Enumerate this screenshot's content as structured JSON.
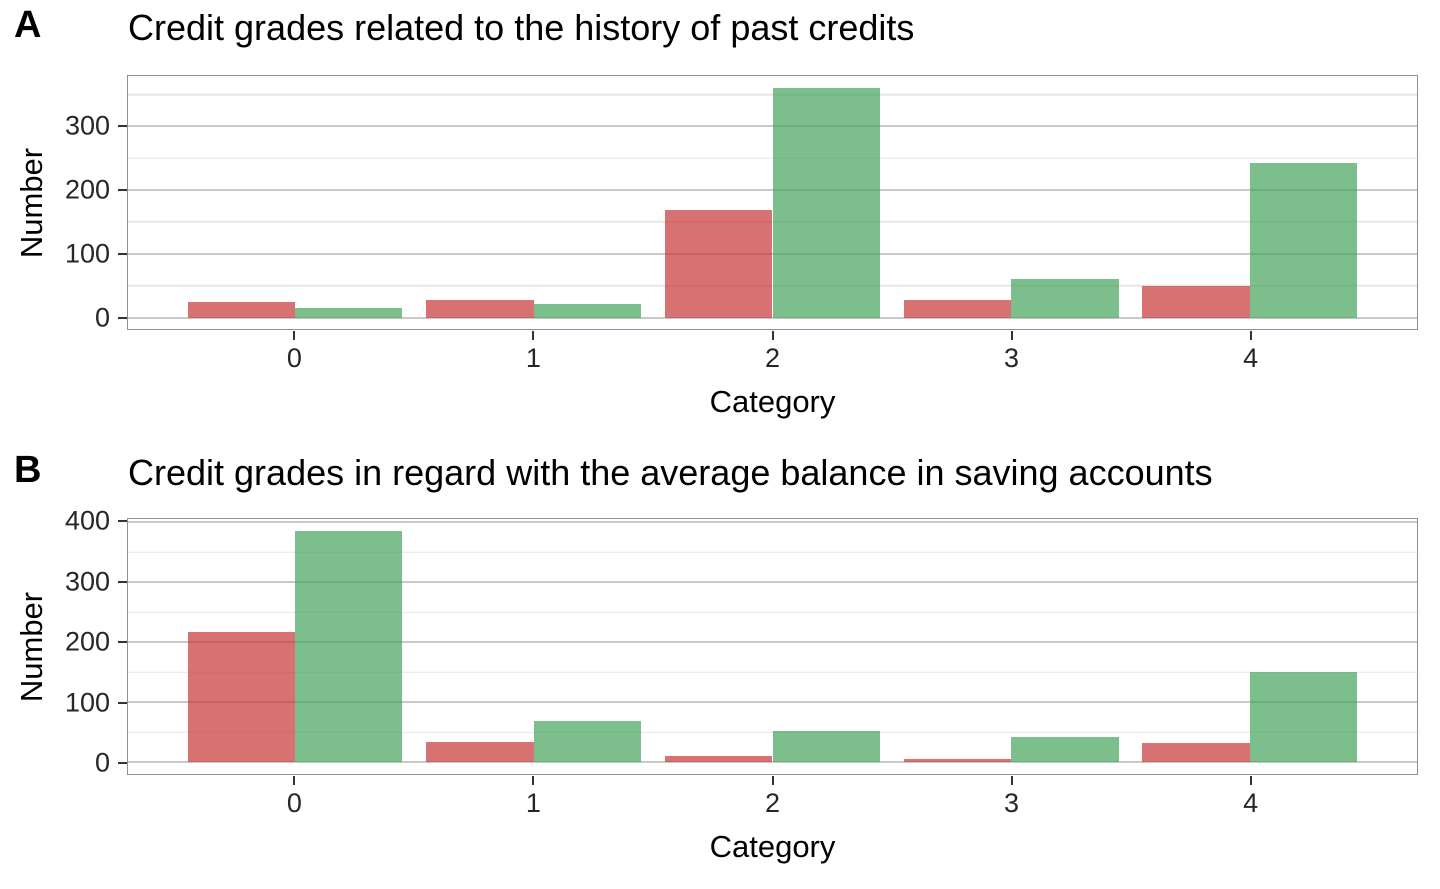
{
  "figure": {
    "panels": [
      {
        "label": "A",
        "title": "Credit grades related to the history of past credits",
        "xlabel": "Category",
        "ylabel": "Number"
      },
      {
        "label": "B",
        "title": "Credit grades in regard with the average balance in saving accounts",
        "xlabel": "Category",
        "ylabel": "Number"
      }
    ]
  },
  "chart_data": [
    {
      "type": "bar",
      "panel": "A",
      "title": "Credit grades related to the history of past credits",
      "xlabel": "Category",
      "ylabel": "Number",
      "categories": [
        "0",
        "1",
        "2",
        "3",
        "4"
      ],
      "series": [
        {
          "name": "red",
          "color": "#D87171",
          "fill": "rgba(201,59,59,0.72)",
          "values": [
            25,
            28,
            169,
            28,
            50
          ]
        },
        {
          "name": "green",
          "color": "#7CBE8C",
          "fill": "rgba(68,162,91,0.70)",
          "values": [
            15,
            21,
            361,
            60,
            243
          ]
        }
      ],
      "yticks": [
        0,
        100,
        200,
        300
      ],
      "yticks_minor": [
        50,
        150,
        250,
        350
      ],
      "ylim": [
        -18.05,
        379.05
      ],
      "bar_layout": {
        "dodge": true,
        "bar_width_units": 0.45,
        "x_expand_units": 0.7
      },
      "grid": "horizontal",
      "legend": "none"
    },
    {
      "type": "bar",
      "panel": "B",
      "title": "Credit grades in regard with the average balance in saving accounts",
      "xlabel": "Category",
      "ylabel": "Number",
      "categories": [
        "0",
        "1",
        "2",
        "3",
        "4"
      ],
      "series": [
        {
          "name": "red",
          "color": "#D87171",
          "fill": "rgba(201,59,59,0.72)",
          "values": [
            217,
            34,
            11,
            6,
            32
          ]
        },
        {
          "name": "green",
          "color": "#7CBE8C",
          "fill": "rgba(68,162,91,0.70)",
          "values": [
            386,
            69,
            52,
            42,
            151
          ]
        }
      ],
      "yticks": [
        0,
        100,
        200,
        300,
        400
      ],
      "yticks_minor": [
        50,
        150,
        250,
        350
      ],
      "ylim": [
        -19.3,
        405.3
      ],
      "bar_layout": {
        "dodge": true,
        "bar_width_units": 0.45,
        "x_expand_units": 0.7
      },
      "grid": "horizontal",
      "legend": "none"
    }
  ]
}
